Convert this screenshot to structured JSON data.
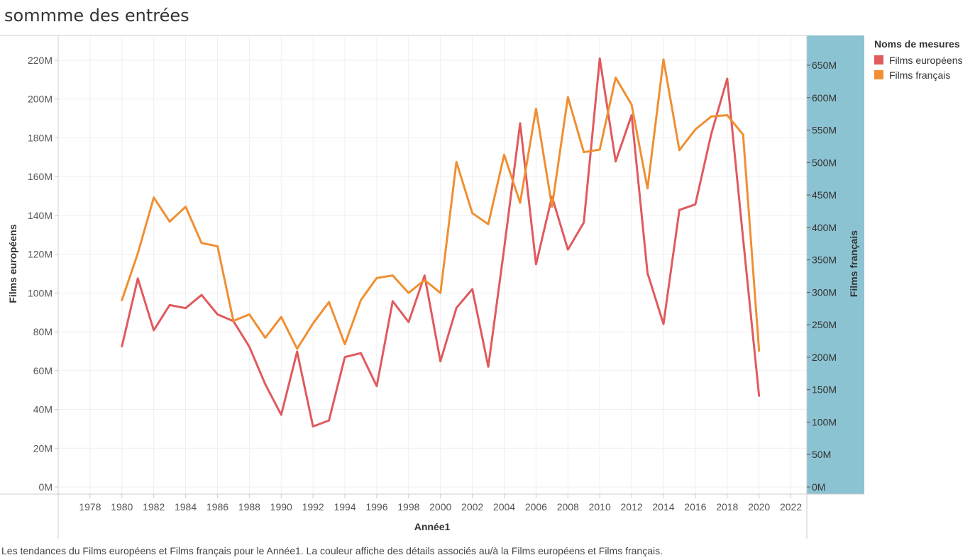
{
  "title": "sommme des entrées",
  "caption": "Les tendances du Films européens et Films français pour le Année1.  La couleur affiche des détails associés au/à la Films européens et Films français.",
  "legend": {
    "title": "Noms de mesures",
    "items": [
      {
        "label": "Films européens",
        "color": "#e05a5e"
      },
      {
        "label": "Films français",
        "color": "#f08f32"
      }
    ]
  },
  "chart_data": {
    "type": "line",
    "xlabel": "Année1",
    "ylabel_left": "Films européens",
    "ylabel_right": "Films français",
    "xlim": [
      1976,
      2023
    ],
    "xticks": [
      1978,
      1980,
      1982,
      1984,
      1986,
      1988,
      1990,
      1992,
      1994,
      1996,
      1998,
      2000,
      2002,
      2004,
      2006,
      2008,
      2010,
      2012,
      2014,
      2016,
      2018,
      2020,
      2022
    ],
    "ylim_left": [
      0,
      220000000
    ],
    "yticks_left": [
      {
        "v": 0,
        "label": "0M"
      },
      {
        "v": 20000000,
        "label": "20M"
      },
      {
        "v": 40000000,
        "label": "40M"
      },
      {
        "v": 60000000,
        "label": "60M"
      },
      {
        "v": 80000000,
        "label": "80M"
      },
      {
        "v": 100000000,
        "label": "100M"
      },
      {
        "v": 120000000,
        "label": "120M"
      },
      {
        "v": 140000000,
        "label": "140M"
      },
      {
        "v": 160000000,
        "label": "160M"
      },
      {
        "v": 180000000,
        "label": "180M"
      },
      {
        "v": 200000000,
        "label": "200M"
      },
      {
        "v": 220000000,
        "label": "220M"
      }
    ],
    "ylim_right": [
      0,
      650000000
    ],
    "yticks_right": [
      {
        "v": 0,
        "label": "0M"
      },
      {
        "v": 50000000,
        "label": "50M"
      },
      {
        "v": 100000000,
        "label": "100M"
      },
      {
        "v": 150000000,
        "label": "150M"
      },
      {
        "v": 200000000,
        "label": "200M"
      },
      {
        "v": 250000000,
        "label": "250M"
      },
      {
        "v": 300000000,
        "label": "300M"
      },
      {
        "v": 350000000,
        "label": "350M"
      },
      {
        "v": 400000000,
        "label": "400M"
      },
      {
        "v": 450000000,
        "label": "450M"
      },
      {
        "v": 500000000,
        "label": "500M"
      },
      {
        "v": 550000000,
        "label": "550M"
      },
      {
        "v": 600000000,
        "label": "600M"
      },
      {
        "v": 650000000,
        "label": "650M"
      }
    ],
    "x": [
      1980,
      1981,
      1982,
      1983,
      1984,
      1985,
      1986,
      1987,
      1988,
      1989,
      1990,
      1991,
      1992,
      1993,
      1994,
      1995,
      1996,
      1997,
      1998,
      1999,
      2000,
      2001,
      2002,
      2003,
      2004,
      2005,
      2006,
      2007,
      2008,
      2009,
      2010,
      2011,
      2012,
      2013,
      2014,
      2015,
      2016,
      2017,
      2018,
      2019,
      2020
    ],
    "series": [
      {
        "name": "Films européens",
        "axis": "left",
        "color": "#e05a5e",
        "values": [
          72500000,
          107500000,
          80800000,
          93800000,
          92200000,
          99000000,
          89000000,
          85500000,
          72300000,
          53000000,
          37200000,
          69800000,
          31200000,
          34300000,
          67000000,
          69000000,
          52000000,
          95800000,
          85000000,
          109000000,
          64800000,
          92300000,
          102000000,
          62000000,
          123000000,
          187500000,
          114800000,
          149700000,
          122400000,
          136300000,
          220900000,
          167800000,
          191700000,
          110300000,
          84000000,
          142800000,
          145700000,
          182000000,
          210500000,
          128000000,
          47000000
        ]
      },
      {
        "name": "Films français",
        "axis": "right",
        "color": "#f08f32",
        "values": [
          288000000,
          360000000,
          446000000,
          409000000,
          432000000,
          376000000,
          371000000,
          256000000,
          266000000,
          230000000,
          262000000,
          213000000,
          252000000,
          285000000,
          220000000,
          288000000,
          322000000,
          326000000,
          299000000,
          319000000,
          299000000,
          501000000,
          422000000,
          405000000,
          512000000,
          438000000,
          583000000,
          432000000,
          601000000,
          516000000,
          520000000,
          631000000,
          589000000,
          460000000,
          659000000,
          519000000,
          551000000,
          571000000,
          573000000,
          543000000,
          210000000
        ]
      }
    ]
  }
}
